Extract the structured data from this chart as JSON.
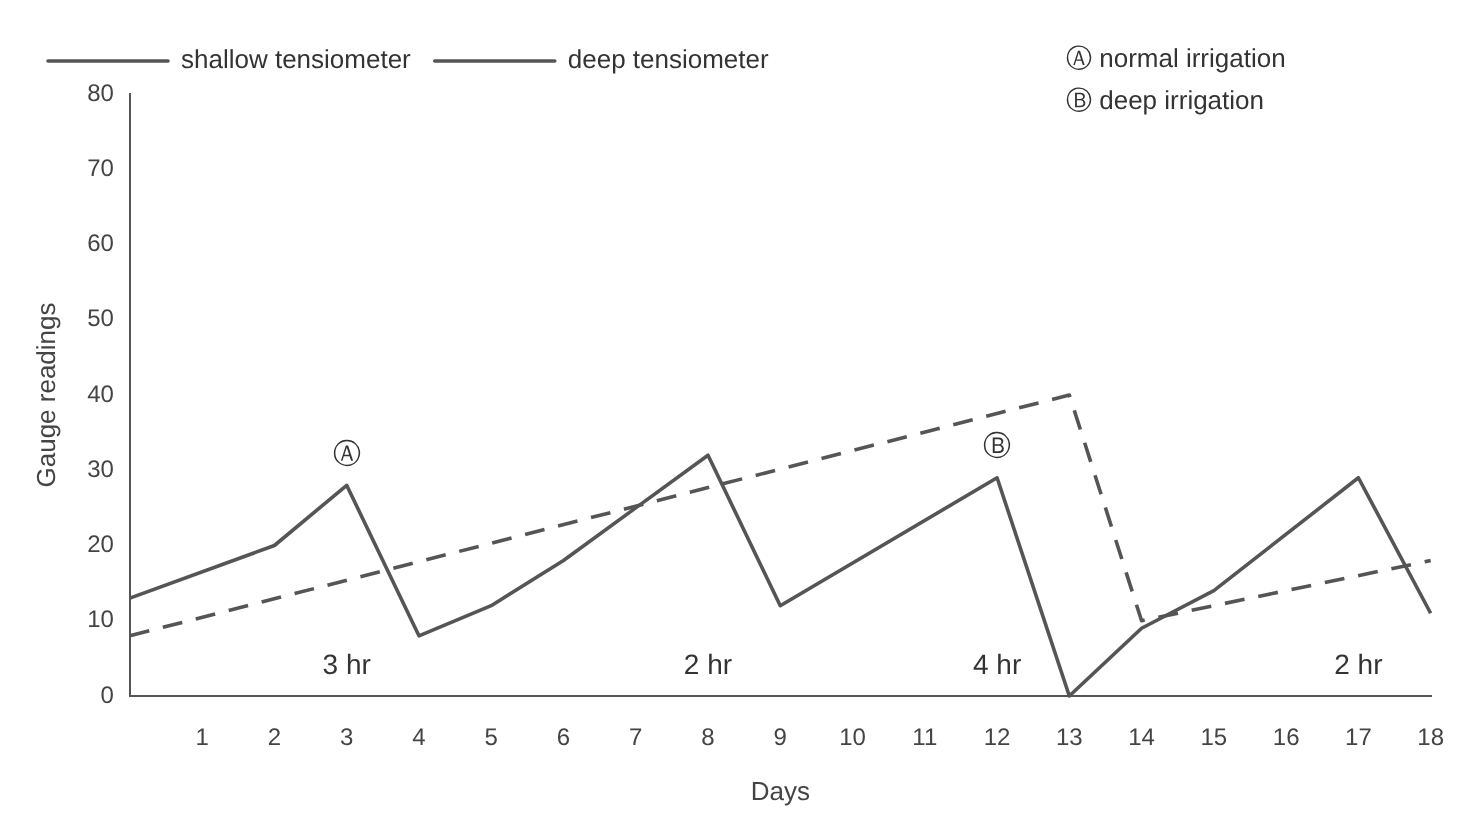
{
  "chart_data": {
    "type": "line",
    "xlabel": "Days",
    "ylabel": "Gauge readings",
    "series": [
      {
        "name": "shallow tensiometer",
        "color": "#555555",
        "line_style": "solid",
        "x": [
          0,
          2,
          3,
          4,
          5,
          6,
          7,
          8,
          9,
          12,
          13,
          14,
          15,
          17,
          18
        ],
        "values": [
          13,
          20,
          28,
          8,
          12,
          18,
          25,
          32,
          12,
          29,
          0,
          9,
          14,
          29,
          11
        ]
      },
      {
        "name": "deep tensiometer",
        "color": "#555555",
        "line_style": "dashed",
        "x": [
          0,
          13,
          14,
          18
        ],
        "values": [
          8,
          40,
          10,
          18
        ]
      }
    ],
    "xlim": [
      0,
      18
    ],
    "xticks": [
      1,
      2,
      3,
      4,
      5,
      6,
      7,
      8,
      9,
      10,
      11,
      12,
      13,
      14,
      15,
      16,
      17,
      18
    ],
    "ylim": [
      0,
      80
    ],
    "yticks": [
      0,
      10,
      20,
      30,
      40,
      50,
      60,
      70,
      80
    ],
    "grid": false,
    "legend": "top",
    "marker": "none",
    "annotations": [
      "Ⓐ",
      "Ⓑ",
      "3 hr",
      "2 hr",
      "4 hr",
      "2 hr",
      "Ⓐ normal irrigation",
      "Ⓑ deep irrigation"
    ]
  }
}
